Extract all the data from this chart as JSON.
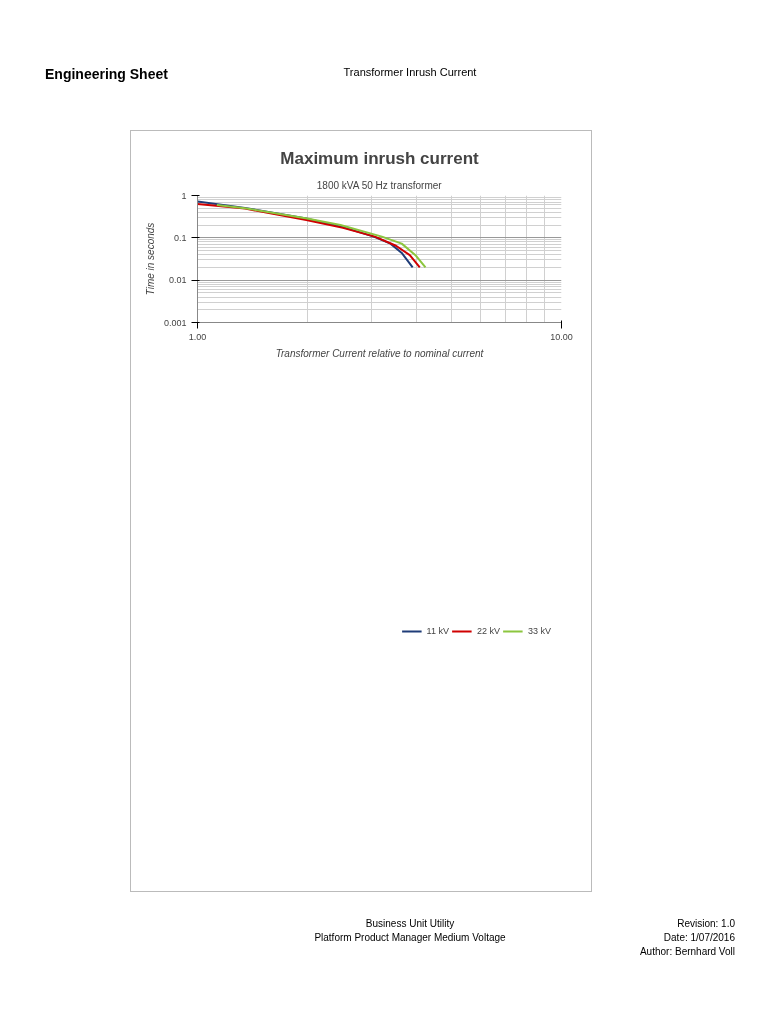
{
  "chart_data": {
    "type": "line",
    "title": "Maximum inrush current",
    "subtitle": "1800 kVA 50 Hz transformer",
    "xlabel": "Transformer Current relative to nominal current",
    "ylabel": "Time in seconds",
    "annotations": [
      "Engineering Sheet",
      "Transformer Inrush Current",
      "Business Unit Utility",
      "Platform Product Manager Medium Voltage",
      "Revision: 1.0",
      "Date: 1/07/2016",
      "Author: Bernhard Voll"
    ],
    "log": "xy",
    "grid": true,
    "legend": "bottom",
    "marker": "none",
    "line_style": "solid",
    "xlim": [
      1,
      10
    ],
    "xticks": [
      {
        "value": 1,
        "label": "1.00"
      },
      {
        "value": 10,
        "label": "10.00"
      }
    ],
    "ylim": [
      0.001,
      1
    ],
    "yticks": [
      {
        "value": 0.001,
        "label": "0.001"
      },
      {
        "value": 0.01,
        "label": "0.01"
      },
      {
        "value": 0.1,
        "label": "0.1"
      },
      1
    ],
    "series": [
      {
        "name": "11 kV",
        "color": "#1f3c78",
        "x": [
          1.0,
          1.35,
          1.99,
          2.51,
          3.05,
          3.39,
          3.64,
          3.9
        ],
        "values": [
          0.72,
          0.51,
          0.285,
          0.179,
          0.107,
          0.073,
          0.044,
          0.02
        ]
      },
      {
        "name": "22 kV",
        "color": "#d00000",
        "x": [
          1.0,
          1.35,
          1.99,
          2.51,
          3.07,
          3.51,
          3.83,
          4.08
        ],
        "values": [
          0.63,
          0.49,
          0.264,
          0.172,
          0.107,
          0.065,
          0.039,
          0.02
        ]
      },
      {
        "name": "33 kV",
        "color": "#8cc63f",
        "x": [
          1.13,
          1.35,
          2.0,
          2.47,
          3.21,
          3.64,
          3.97,
          4.23
        ],
        "values": [
          0.593,
          0.5,
          0.285,
          0.201,
          0.107,
          0.073,
          0.039,
          0.02
        ]
      }
    ]
  }
}
